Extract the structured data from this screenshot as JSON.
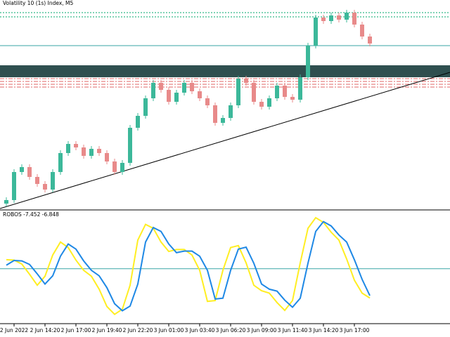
{
  "chart_data": [
    {
      "type": "candlestick",
      "title": "Volatility 10 (1s) Index, M5",
      "categories": [
        null,
        "2 Jun 2022",
        null,
        null,
        null,
        "2 Jun 14:20",
        null,
        null,
        null,
        "2 Jun 17:00",
        null,
        null,
        null,
        "2 Jun 19:40",
        null,
        null,
        null,
        "2 Jun 22:20",
        null,
        null,
        null,
        "3 Jun 01:00",
        null,
        null,
        null,
        "3 Jun 03:40",
        null,
        null,
        null,
        "3 Jun 06:20",
        null,
        null,
        null,
        "3 Jun 09:00",
        null,
        null,
        null,
        "3 Jun 11:40",
        null,
        null,
        null,
        "3 Jun 14:20",
        null,
        null,
        null,
        "3 Jun 17:00",
        null,
        null
      ],
      "open": [
        10,
        15,
        55,
        62,
        48,
        38,
        30,
        55,
        82,
        95,
        90,
        78,
        88,
        82,
        70,
        55,
        68,
        118,
        135,
        160,
        182,
        172,
        155,
        168,
        182,
        170,
        160,
        150,
        125,
        132,
        150,
        188,
        182,
        155,
        148,
        160,
        178,
        162,
        158,
        190,
        235,
        275,
        270,
        278,
        272,
        282,
        265,
        248
      ],
      "high": [
        19,
        59,
        66,
        66,
        52,
        42,
        59,
        86,
        99,
        99,
        94,
        92,
        92,
        86,
        74,
        72,
        122,
        139,
        164,
        186,
        186,
        176,
        172,
        186,
        186,
        174,
        164,
        154,
        136,
        154,
        192,
        192,
        186,
        159,
        164,
        182,
        182,
        166,
        194,
        239,
        279,
        279,
        282,
        282,
        286,
        286,
        269,
        252
      ],
      "low": [
        6,
        11,
        51,
        44,
        34,
        26,
        26,
        51,
        78,
        86,
        74,
        74,
        78,
        66,
        51,
        51,
        64,
        114,
        131,
        156,
        168,
        151,
        151,
        164,
        166,
        156,
        146,
        121,
        121,
        128,
        146,
        178,
        151,
        144,
        144,
        156,
        158,
        154,
        154,
        186,
        231,
        266,
        266,
        268,
        268,
        261,
        244,
        234
      ],
      "close": [
        15,
        55,
        62,
        48,
        38,
        30,
        55,
        82,
        95,
        90,
        78,
        88,
        82,
        70,
        55,
        68,
        118,
        135,
        160,
        182,
        172,
        155,
        168,
        182,
        170,
        160,
        150,
        125,
        132,
        150,
        188,
        182,
        155,
        148,
        160,
        178,
        162,
        158,
        190,
        235,
        275,
        270,
        278,
        272,
        282,
        265,
        248,
        238
      ],
      "up_color": "#3cb89a",
      "down_color": "#e88a8a",
      "ylim": [
        2,
        300
      ]
    },
    {
      "type": "line",
      "title": "ROBOS -7.452 -6.848",
      "series": [
        {
          "color": "#ffee22",
          "values": [
            2.3,
            2.2,
            1.2,
            -1.4,
            -4.2,
            -1.9,
            3.5,
            6.8,
            5.4,
            2.2,
            -0.4,
            -1.9,
            -5.2,
            -9.6,
            -11.6,
            -10.3,
            -4.2,
            7.3,
            11.3,
            10.3,
            6.8,
            4.4,
            4.9,
            4.9,
            3.5,
            -0.4,
            -8.3,
            -8.1,
            -0.4,
            5.4,
            5.9,
            1.5,
            -4.2,
            -5.6,
            -6.2,
            -8.6,
            -10.6,
            -8.1,
            1.5,
            10.3,
            13.0,
            11.8,
            9.3,
            7.3,
            2.5,
            -2.9,
            -6.2,
            -7.452
          ]
        },
        {
          "color": "#1e88e5",
          "values": [
            0.9,
            2.1,
            2.0,
            1.1,
            -1.3,
            -3.9,
            -1.8,
            3.2,
            6.3,
            5.0,
            2.0,
            -0.4,
            -1.8,
            -4.8,
            -8.9,
            -10.7,
            -9.5,
            -3.9,
            6.8,
            10.5,
            9.5,
            6.3,
            4.1,
            4.5,
            4.5,
            3.2,
            -0.4,
            -7.7,
            -7.5,
            -0.4,
            5.0,
            5.5,
            1.4,
            -3.9,
            -5.2,
            -5.7,
            -8.0,
            -9.8,
            -7.5,
            1.4,
            9.5,
            12.0,
            10.9,
            8.6,
            6.8,
            2.3,
            -2.7,
            -6.848
          ]
        }
      ],
      "ylim": [
        -13.8,
        14.8
      ]
    }
  ]
}
